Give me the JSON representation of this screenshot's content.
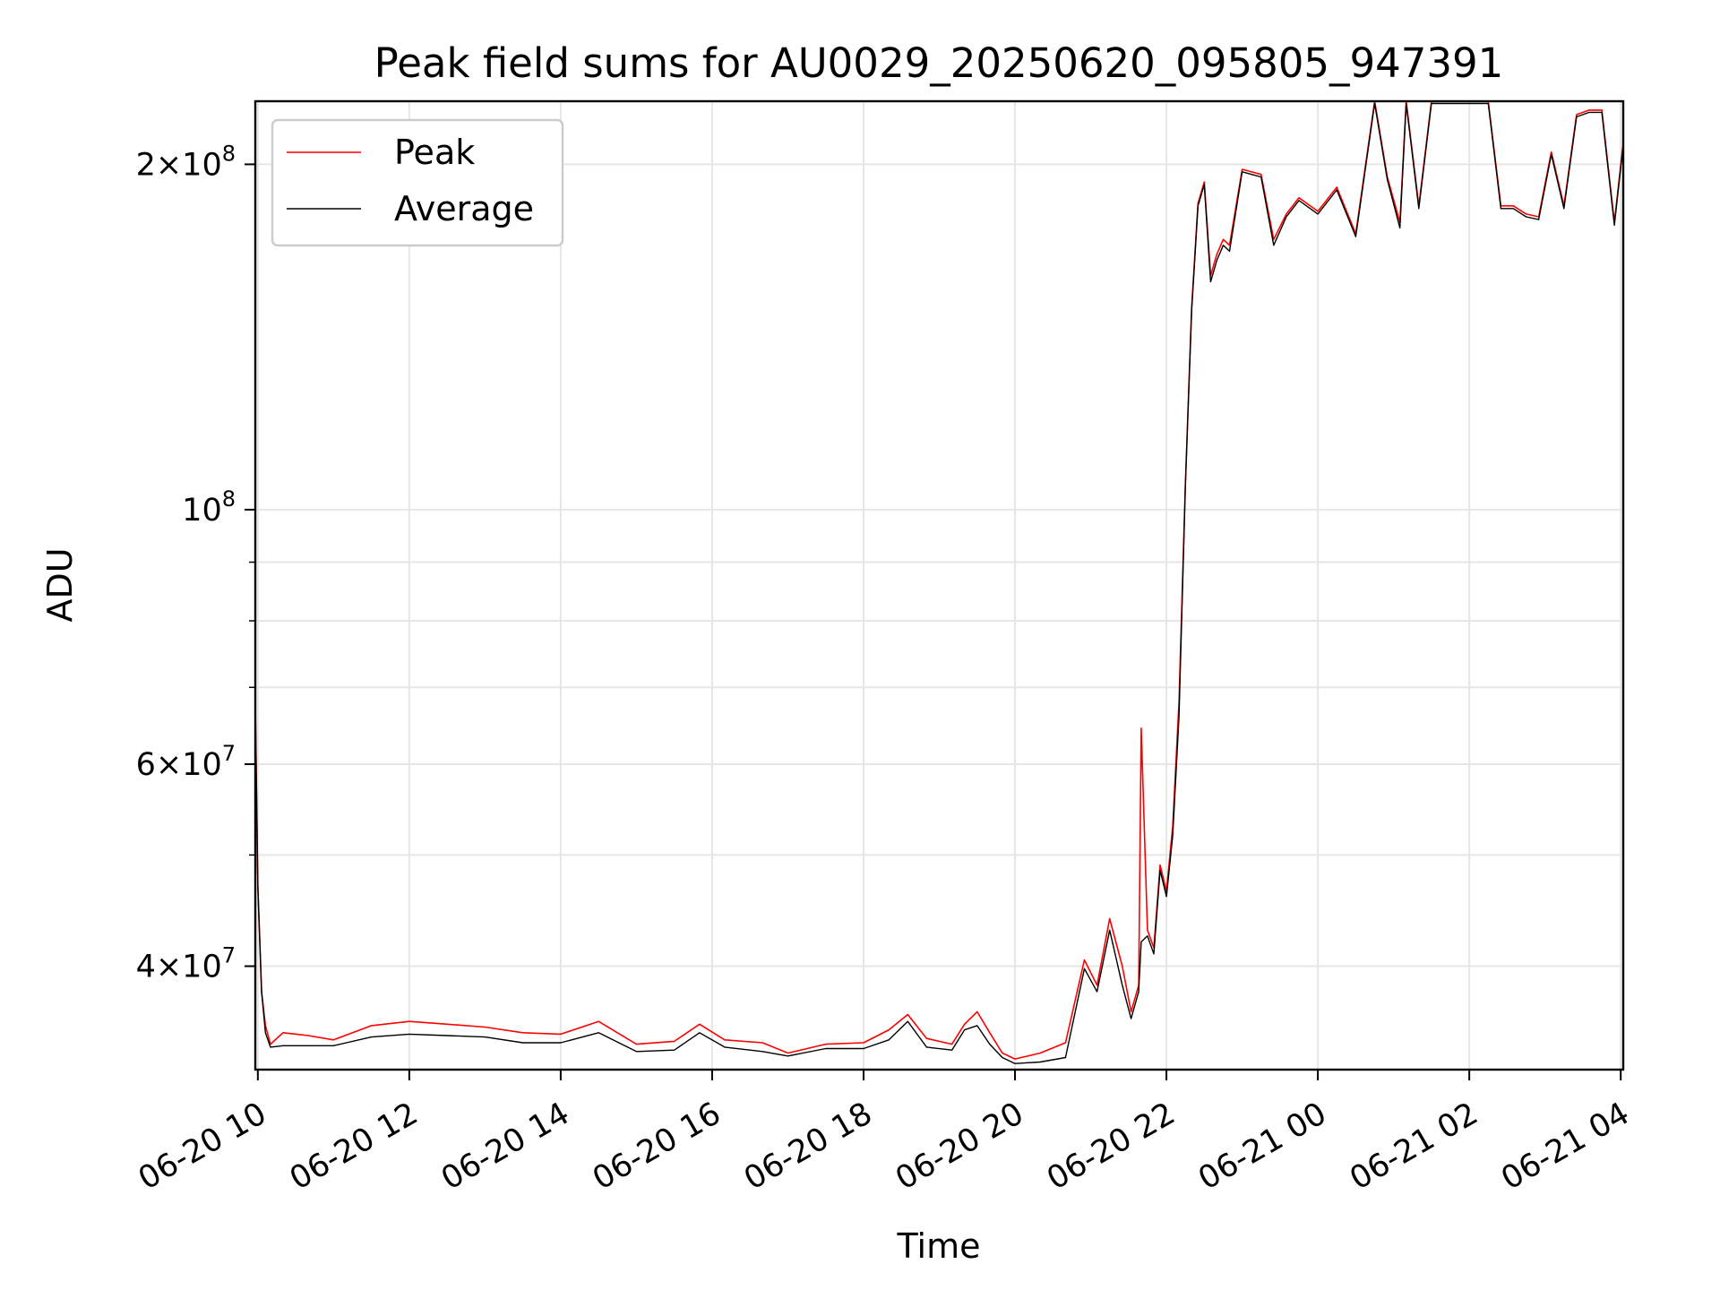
{
  "chart_data": {
    "type": "line",
    "title": "Peak field sums for AU0029_20250620_095805_947391",
    "xlabel": "Time",
    "ylabel": "ADU",
    "y_scale": "log",
    "ylim": [
      32500000,
      227000000
    ],
    "xlim": [
      "2025-06-20 09:58",
      "2025-06-21 04:02"
    ],
    "grid": true,
    "legend_position": "upper-left",
    "x_ticks": [
      {
        "value": "2025-06-20 10:00",
        "label": "06-20 10"
      },
      {
        "value": "2025-06-20 12:00",
        "label": "06-20 12"
      },
      {
        "value": "2025-06-20 14:00",
        "label": "06-20 14"
      },
      {
        "value": "2025-06-20 16:00",
        "label": "06-20 16"
      },
      {
        "value": "2025-06-20 18:00",
        "label": "06-20 18"
      },
      {
        "value": "2025-06-20 20:00",
        "label": "06-20 20"
      },
      {
        "value": "2025-06-20 22:00",
        "label": "06-20 22"
      },
      {
        "value": "2025-06-21 00:00",
        "label": "06-21 00"
      },
      {
        "value": "2025-06-21 02:00",
        "label": "06-21 02"
      },
      {
        "value": "2025-06-21 04:00",
        "label": "06-21 04"
      }
    ],
    "y_major_ticks": [
      {
        "value": 40000000,
        "mantissa": "4",
        "exponent": "7"
      },
      {
        "value": 60000000,
        "mantissa": "6",
        "exponent": "7"
      },
      {
        "value": 100000000,
        "mantissa": "",
        "exponent": "8"
      },
      {
        "value": 200000000,
        "mantissa": "2",
        "exponent": "8"
      }
    ],
    "y_minor_ticks": [
      50000000,
      70000000,
      80000000,
      90000000
    ],
    "series": [
      {
        "name": "Peak",
        "color": "#ff0000",
        "x": [
          "2025-06-20 09:58",
          "2025-06-20 10:00",
          "2025-06-20 10:03",
          "2025-06-20 10:06",
          "2025-06-20 10:10",
          "2025-06-20 10:20",
          "2025-06-20 10:40",
          "2025-06-20 11:00",
          "2025-06-20 11:30",
          "2025-06-20 12:00",
          "2025-06-20 12:30",
          "2025-06-20 13:00",
          "2025-06-20 13:30",
          "2025-06-20 14:00",
          "2025-06-20 14:30",
          "2025-06-20 15:00",
          "2025-06-20 15:30",
          "2025-06-20 15:50",
          "2025-06-20 16:10",
          "2025-06-20 16:40",
          "2025-06-20 17:00",
          "2025-06-20 17:30",
          "2025-06-20 18:00",
          "2025-06-20 18:20",
          "2025-06-20 18:35",
          "2025-06-20 18:50",
          "2025-06-20 19:10",
          "2025-06-20 19:20",
          "2025-06-20 19:30",
          "2025-06-20 19:40",
          "2025-06-20 19:50",
          "2025-06-20 20:00",
          "2025-06-20 20:20",
          "2025-06-20 20:40",
          "2025-06-20 20:55",
          "2025-06-20 21:05",
          "2025-06-20 21:15",
          "2025-06-20 21:25",
          "2025-06-20 21:32",
          "2025-06-20 21:38",
          "2025-06-20 21:40",
          "2025-06-20 21:45",
          "2025-06-20 21:50",
          "2025-06-20 21:55",
          "2025-06-20 22:00",
          "2025-06-20 22:05",
          "2025-06-20 22:10",
          "2025-06-20 22:15",
          "2025-06-20 22:20",
          "2025-06-20 22:25",
          "2025-06-20 22:30",
          "2025-06-20 22:35",
          "2025-06-20 22:40",
          "2025-06-20 22:45",
          "2025-06-20 22:50",
          "2025-06-20 23:00",
          "2025-06-20 23:15",
          "2025-06-20 23:25",
          "2025-06-20 23:35",
          "2025-06-20 23:45",
          "2025-06-21 00:00",
          "2025-06-21 00:15",
          "2025-06-21 00:30",
          "2025-06-21 00:45",
          "2025-06-21 00:55",
          "2025-06-21 01:05",
          "2025-06-21 01:10",
          "2025-06-21 01:20",
          "2025-06-21 01:30",
          "2025-06-21 01:40",
          "2025-06-21 01:50",
          "2025-06-21 02:00",
          "2025-06-21 02:15",
          "2025-06-21 02:25",
          "2025-06-21 02:35",
          "2025-06-21 02:45",
          "2025-06-21 02:55",
          "2025-06-21 03:05",
          "2025-06-21 03:15",
          "2025-06-21 03:25",
          "2025-06-21 03:35",
          "2025-06-21 03:45",
          "2025-06-21 03:55",
          "2025-06-21 04:02"
        ],
        "y": [
          68000000,
          47000000,
          38000000,
          35500000,
          34200000,
          35000000,
          34800000,
          34500000,
          35500000,
          35800000,
          35600000,
          35400000,
          35000000,
          34900000,
          35800000,
          34200000,
          34400000,
          35600000,
          34500000,
          34300000,
          33600000,
          34200000,
          34300000,
          35200000,
          36300000,
          34600000,
          34200000,
          35600000,
          36500000,
          35000000,
          33600000,
          33200000,
          33600000,
          34300000,
          40500000,
          38500000,
          44000000,
          40000000,
          36500000,
          38500000,
          64500000,
          43000000,
          41500000,
          49000000,
          46500000,
          53000000,
          68000000,
          105000000,
          150000000,
          185000000,
          193000000,
          160000000,
          167000000,
          172000000,
          170000000,
          198000000,
          196000000,
          172000000,
          181000000,
          187000000,
          182000000,
          191000000,
          174000000,
          227000000,
          195000000,
          178000000,
          227000000,
          184000000,
          227000000,
          227000000,
          227000000,
          227000000,
          227000000,
          184000000,
          184000000,
          181000000,
          180000000,
          205000000,
          184000000,
          221000000,
          223000000,
          223000000,
          178000000,
          209000000
        ]
      },
      {
        "name": "Average",
        "color": "#000000",
        "x": [
          "2025-06-20 09:58",
          "2025-06-20 10:00",
          "2025-06-20 10:03",
          "2025-06-20 10:06",
          "2025-06-20 10:10",
          "2025-06-20 10:20",
          "2025-06-20 10:40",
          "2025-06-20 11:00",
          "2025-06-20 11:30",
          "2025-06-20 12:00",
          "2025-06-20 12:30",
          "2025-06-20 13:00",
          "2025-06-20 13:30",
          "2025-06-20 14:00",
          "2025-06-20 14:30",
          "2025-06-20 15:00",
          "2025-06-20 15:30",
          "2025-06-20 15:50",
          "2025-06-20 16:10",
          "2025-06-20 16:40",
          "2025-06-20 17:00",
          "2025-06-20 17:30",
          "2025-06-20 18:00",
          "2025-06-20 18:20",
          "2025-06-20 18:35",
          "2025-06-20 18:50",
          "2025-06-20 19:10",
          "2025-06-20 19:20",
          "2025-06-20 19:30",
          "2025-06-20 19:40",
          "2025-06-20 19:50",
          "2025-06-20 20:00",
          "2025-06-20 20:20",
          "2025-06-20 20:40",
          "2025-06-20 20:55",
          "2025-06-20 21:05",
          "2025-06-20 21:15",
          "2025-06-20 21:25",
          "2025-06-20 21:32",
          "2025-06-20 21:38",
          "2025-06-20 21:40",
          "2025-06-20 21:45",
          "2025-06-20 21:50",
          "2025-06-20 21:55",
          "2025-06-20 22:00",
          "2025-06-20 22:05",
          "2025-06-20 22:10",
          "2025-06-20 22:15",
          "2025-06-20 22:20",
          "2025-06-20 22:25",
          "2025-06-20 22:30",
          "2025-06-20 22:35",
          "2025-06-20 22:40",
          "2025-06-20 22:45",
          "2025-06-20 22:50",
          "2025-06-20 23:00",
          "2025-06-20 23:15",
          "2025-06-20 23:25",
          "2025-06-20 23:35",
          "2025-06-20 23:45",
          "2025-06-21 00:00",
          "2025-06-21 00:15",
          "2025-06-21 00:30",
          "2025-06-21 00:45",
          "2025-06-21 00:55",
          "2025-06-21 01:05",
          "2025-06-21 01:10",
          "2025-06-21 01:20",
          "2025-06-21 01:30",
          "2025-06-21 01:40",
          "2025-06-21 01:50",
          "2025-06-21 02:00",
          "2025-06-21 02:15",
          "2025-06-21 02:25",
          "2025-06-21 02:35",
          "2025-06-21 02:45",
          "2025-06-21 02:55",
          "2025-06-21 03:05",
          "2025-06-21 03:15",
          "2025-06-21 03:25",
          "2025-06-21 03:35",
          "2025-06-21 03:45",
          "2025-06-21 03:55",
          "2025-06-21 04:02"
        ],
        "y": [
          68000000,
          47000000,
          38000000,
          35000000,
          34000000,
          34100000,
          34100000,
          34100000,
          34700000,
          34900000,
          34800000,
          34700000,
          34300000,
          34300000,
          35000000,
          33700000,
          33800000,
          35000000,
          34000000,
          33700000,
          33400000,
          33900000,
          33900000,
          34500000,
          35800000,
          34000000,
          33800000,
          35200000,
          35500000,
          34200000,
          33300000,
          32900000,
          33000000,
          33300000,
          39800000,
          38000000,
          43000000,
          38500000,
          36000000,
          38000000,
          42000000,
          42500000,
          41000000,
          48500000,
          46000000,
          52000000,
          66000000,
          105000000,
          149000000,
          184000000,
          192000000,
          158000000,
          165000000,
          170000000,
          168000000,
          197000000,
          195000000,
          170000000,
          180000000,
          186000000,
          181000000,
          190000000,
          173000000,
          226000000,
          194000000,
          176000000,
          226000000,
          183000000,
          226000000,
          226000000,
          226000000,
          226000000,
          226000000,
          183000000,
          183000000,
          180000000,
          179000000,
          204000000,
          183000000,
          220000000,
          222000000,
          222000000,
          177000000,
          208000000
        ]
      }
    ]
  }
}
